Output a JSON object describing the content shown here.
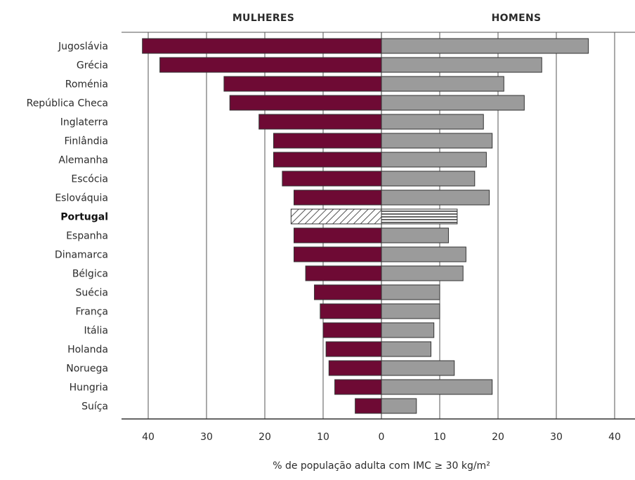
{
  "chart_data": {
    "type": "bar",
    "orientation": "horizontal-butterfly",
    "left_heading": "MULHERES",
    "right_heading": "HOMENS",
    "xlabel": "% de população adulta com IMC ≥ 30 kg/m²",
    "xlim": [
      -40,
      40
    ],
    "ticks": [
      40,
      30,
      20,
      10,
      0,
      10,
      20,
      30,
      40
    ],
    "grid": true,
    "highlight_category": "Portugal",
    "colors": {
      "women": "#6e0a34",
      "men": "#9b9b9b",
      "outline": "#333333"
    },
    "categories": [
      "Jugoslávia",
      "Grécia",
      "Roménia",
      "República Checa",
      "Inglaterra",
      "Finlândia",
      "Alemanha",
      "Escócia",
      "Eslováquia",
      "Portugal",
      "Espanha",
      "Dinamarca",
      "Bélgica",
      "Suécia",
      "França",
      "Itália",
      "Holanda",
      "Noruega",
      "Hungria",
      "Suíça"
    ],
    "series": [
      {
        "name": "MULHERES",
        "values": [
          41,
          38,
          27,
          26,
          21,
          18.5,
          18.5,
          17,
          15,
          15.5,
          15,
          15,
          13,
          11.5,
          10.5,
          10,
          9.5,
          9,
          8,
          4.5
        ]
      },
      {
        "name": "HOMENS",
        "values": [
          35.5,
          27.5,
          21,
          24.5,
          17.5,
          19,
          18,
          16,
          18.5,
          13,
          11.5,
          14.5,
          14,
          10,
          10,
          9,
          8.5,
          12.5,
          19,
          6
        ]
      }
    ]
  }
}
